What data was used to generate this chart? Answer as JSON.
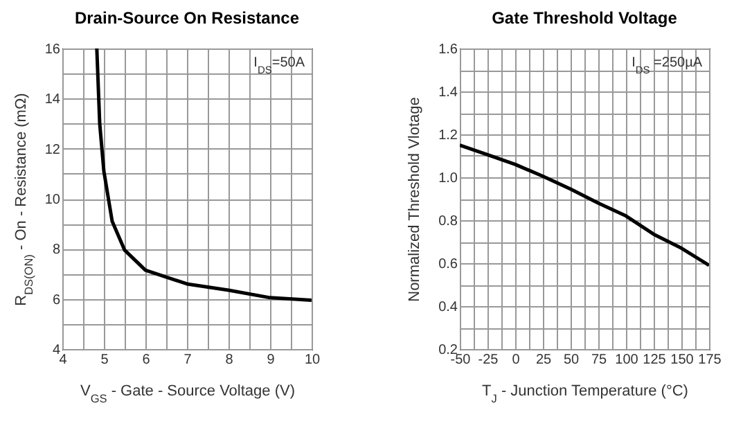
{
  "chart_data": [
    {
      "type": "line",
      "title": "Drain-Source On Resistance",
      "xlabel": "V$_{GS}$ - Gate - Source Voltage (V)",
      "ylabel": "R$_{DS(ON)}$ - On - Resistance (mΩ)",
      "annotations": [
        "I$_{DS}$=50A"
      ],
      "x": [
        4.83,
        4.9,
        5,
        5.2,
        5.5,
        6,
        7,
        8,
        9,
        10
      ],
      "series": [
        {
          "color": "#000000",
          "values": [
            16,
            13,
            11.1,
            9.1,
            7.95,
            7.15,
            6.6,
            6.35,
            6.05,
            5.95
          ]
        }
      ],
      "xlim": [
        4,
        10
      ],
      "xticks": [
        4,
        {
          "value": 4.5,
          "label": null
        },
        5,
        {
          "value": 5.5,
          "label": null
        },
        6,
        {
          "value": 6.5,
          "label": null
        },
        7,
        {
          "value": 7.5,
          "label": null
        },
        8,
        {
          "value": 8.5,
          "label": null
        },
        9,
        {
          "value": 9.5,
          "label": null
        },
        10
      ],
      "ylim": [
        4,
        16
      ],
      "yticks": [
        4,
        {
          "value": 5,
          "label": null
        },
        6,
        {
          "value": 7,
          "label": null
        },
        8,
        {
          "value": 9,
          "label": null
        },
        10,
        {
          "value": 11,
          "label": null
        },
        12,
        {
          "value": 13,
          "label": null
        },
        14,
        {
          "value": 15,
          "label": null
        },
        16
      ],
      "grid": true,
      "legend": false,
      "marker": "none",
      "line_style": "solid"
    },
    {
      "type": "line",
      "title": "Gate Threshold Voltage",
      "xlabel": "T$_{J}$ - Junction Temperature (°C)",
      "ylabel": "Normalized Threshold Vlotage",
      "annotations": [
        "I$_{DS}$ =250µA"
      ],
      "x": [
        -50,
        -25,
        0,
        25,
        50,
        75,
        100,
        125,
        150,
        175
      ],
      "series": [
        {
          "color": "#000000",
          "values": [
            1.15,
            1.105,
            1.06,
            1.005,
            0.945,
            0.88,
            0.82,
            0.735,
            0.67,
            0.59
          ]
        }
      ],
      "xlim": [
        -50,
        175
      ],
      "xticks": [
        -50,
        {
          "value": -37.5,
          "label": null
        },
        -25,
        {
          "value": -12.5,
          "label": null
        },
        0,
        {
          "value": 12.5,
          "label": null
        },
        25,
        {
          "value": 37.5,
          "label": null
        },
        50,
        {
          "value": 62.5,
          "label": null
        },
        75,
        {
          "value": 87.5,
          "label": null
        },
        100,
        {
          "value": 112.5,
          "label": null
        },
        125,
        {
          "value": 137.5,
          "label": null
        },
        150,
        {
          "value": 162.5,
          "label": null
        },
        175
      ],
      "ylim": [
        0.2,
        1.6
      ],
      "yticks": [
        {
          "value": 0.2,
          "label": "0.2"
        },
        {
          "value": 0.3,
          "label": null
        },
        {
          "value": 0.4,
          "label": "0.4"
        },
        {
          "value": 0.5,
          "label": null
        },
        {
          "value": 0.6,
          "label": "0.6"
        },
        {
          "value": 0.7,
          "label": null
        },
        {
          "value": 0.8,
          "label": "0.8"
        },
        {
          "value": 0.9,
          "label": null
        },
        {
          "value": 1.0,
          "label": "1.0"
        },
        {
          "value": 1.1,
          "label": null
        },
        {
          "value": 1.2,
          "label": "1.2"
        },
        {
          "value": 1.3,
          "label": null
        },
        {
          "value": 1.4,
          "label": "1.4"
        },
        {
          "value": 1.5,
          "label": null
        },
        {
          "value": 1.6,
          "label": "1.6"
        }
      ],
      "grid": true,
      "legend": false,
      "marker": "none",
      "line_style": "solid"
    }
  ]
}
